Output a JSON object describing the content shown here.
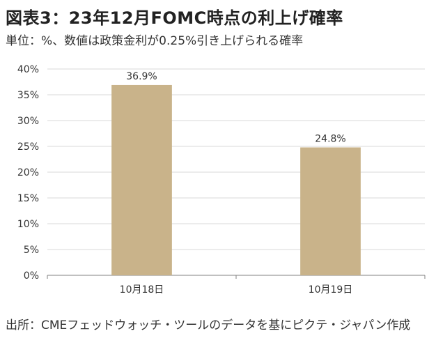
{
  "title": "図表3：23年12月FOMC時点の利上げ確率",
  "subtitle": "単位：%、数値は政策金利が0.25%引き上げられる確率",
  "source": "出所：CMEフェッドウォッチ・ツールのデータを基にピクテ・ジャパン作成",
  "chart_data": {
    "type": "bar",
    "categories": [
      "10月18日",
      "10月19日"
    ],
    "values": [
      36.9,
      24.8
    ],
    "data_labels": [
      "36.9%",
      "24.8%"
    ],
    "ylim": [
      0,
      40
    ],
    "yticks": [
      0,
      5,
      10,
      15,
      20,
      25,
      30,
      35,
      40
    ],
    "ytick_labels": [
      "0%",
      "5%",
      "10%",
      "15%",
      "20%",
      "25%",
      "30%",
      "35%",
      "40%"
    ],
    "grid": true,
    "bar_color": "#c9b38a",
    "grid_color": "#d9d9d9"
  }
}
